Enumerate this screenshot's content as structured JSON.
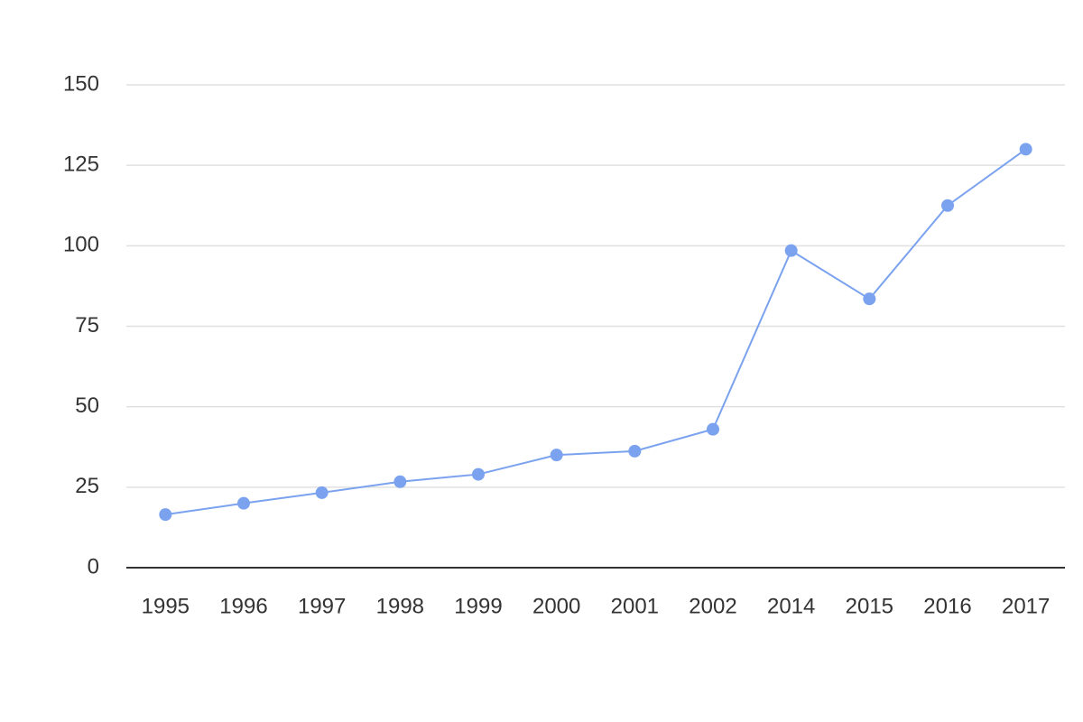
{
  "chart_data": {
    "type": "line",
    "categories": [
      "1995",
      "1996",
      "1997",
      "1998",
      "1999",
      "2000",
      "2001",
      "2002",
      "2014",
      "2015",
      "2016",
      "2017"
    ],
    "series": [
      {
        "color": "#7ba2ef",
        "values": [
          16.5,
          20,
          23.3,
          26.7,
          29,
          35,
          36.2,
          43,
          98.5,
          83.5,
          112.5,
          130
        ]
      }
    ],
    "ylim": [
      0,
      150
    ],
    "yticks": [
      0,
      25,
      50,
      75,
      100,
      125,
      150
    ],
    "grid": true
  }
}
